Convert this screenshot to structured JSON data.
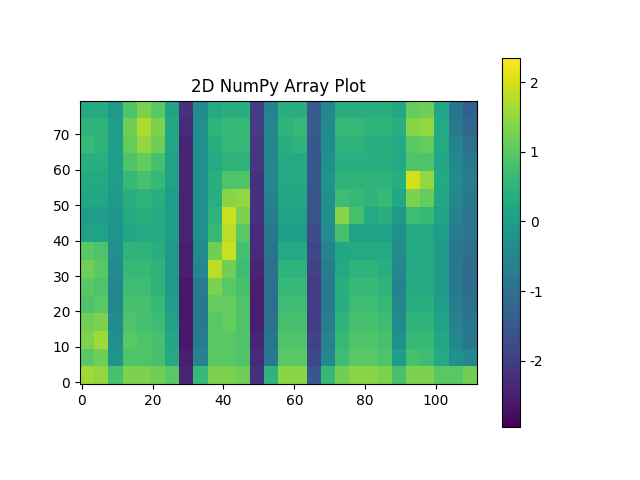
{
  "chart_data": {
    "type": "heatmap",
    "title": "2D NumPy Array Plot",
    "xlim": [
      -0.5,
      111.5
    ],
    "ylim": [
      -0.5,
      79.5
    ],
    "xticks": [
      0,
      20,
      40,
      60,
      80,
      100
    ],
    "yticks": [
      0,
      10,
      20,
      30,
      40,
      50,
      60,
      70
    ],
    "clim": [
      -2.95,
      2.35
    ],
    "colorbar_ticks": [
      -2,
      -1,
      0,
      1,
      2
    ],
    "cells": [
      [
        1.6,
        1.5,
        0.8,
        1.3,
        1.3,
        1.2,
        1.0,
        -2.4,
        0.6,
        1.3,
        1.3,
        1.2,
        -2.2,
        0.5,
        1.4,
        1.4,
        -1.5,
        0.6,
        1.2,
        1.4,
        1.4,
        1.3,
        0.8,
        1.3,
        1.3,
        1.0,
        1.0,
        1.2
      ],
      [
        1.0,
        1.2,
        -0.2,
        0.9,
        0.9,
        0.8,
        0.3,
        -2.5,
        -0.6,
        1.0,
        1.0,
        0.9,
        -2.3,
        -0.8,
        1.0,
        1.0,
        -1.8,
        -0.5,
        0.7,
        1.0,
        1.0,
        0.9,
        0.0,
        0.8,
        0.7,
        0.3,
        -0.3,
        -0.5
      ],
      [
        1.3,
        1.6,
        -0.3,
        1.0,
        0.9,
        0.8,
        0.2,
        -2.6,
        -0.7,
        1.0,
        1.0,
        0.9,
        -2.4,
        -0.9,
        0.9,
        0.9,
        -1.9,
        -0.6,
        0.6,
        0.9,
        0.9,
        0.8,
        -0.3,
        0.6,
        0.6,
        0.2,
        -0.5,
        -0.8
      ],
      [
        1.2,
        1.3,
        -0.4,
        0.9,
        0.8,
        0.7,
        0.1,
        -2.6,
        -0.8,
        1.0,
        1.1,
        0.9,
        -2.5,
        -1.0,
        0.8,
        0.8,
        -2.0,
        -0.7,
        0.5,
        0.8,
        0.8,
        0.7,
        -0.4,
        0.5,
        0.5,
        0.1,
        -0.6,
        -0.9
      ],
      [
        0.9,
        1.0,
        -0.5,
        0.8,
        0.8,
        0.6,
        0.0,
        -2.6,
        -0.8,
        1.1,
        1.1,
        0.9,
        -2.5,
        -1.0,
        0.7,
        0.7,
        -2.0,
        -0.8,
        0.4,
        0.7,
        0.7,
        0.6,
        -0.5,
        0.4,
        0.4,
        0.0,
        -0.7,
        -1.0
      ],
      [
        1.0,
        0.9,
        -0.5,
        0.7,
        0.7,
        0.5,
        -0.1,
        -2.6,
        -0.7,
        1.3,
        1.0,
        0.8,
        -2.5,
        -1.0,
        0.6,
        0.6,
        -2.0,
        -0.8,
        0.4,
        0.6,
        0.6,
        0.5,
        -0.6,
        0.3,
        0.3,
        -0.1,
        -0.8,
        -1.1
      ],
      [
        1.2,
        1.0,
        -0.4,
        0.6,
        0.6,
        0.5,
        -0.1,
        -2.5,
        -0.5,
        1.8,
        1.2,
        0.7,
        -2.4,
        -1.0,
        0.5,
        0.5,
        -1.9,
        -0.7,
        0.3,
        0.5,
        0.5,
        0.4,
        -0.5,
        0.3,
        0.3,
        -0.1,
        -0.8,
        -1.1
      ],
      [
        1.0,
        0.9,
        -0.3,
        0.5,
        0.5,
        0.4,
        -0.1,
        -2.5,
        -0.4,
        1.2,
        1.9,
        0.8,
        -2.3,
        -0.9,
        0.3,
        0.3,
        -1.8,
        -0.6,
        0.2,
        0.3,
        0.3,
        0.3,
        -0.4,
        0.3,
        0.3,
        -0.1,
        -0.8,
        -1.0
      ],
      [
        0.1,
        0.1,
        -0.2,
        0.2,
        0.3,
        0.3,
        0.0,
        -2.4,
        -0.3,
        0.6,
        1.8,
        1.0,
        -2.3,
        -0.8,
        0.0,
        0.0,
        -1.7,
        -0.4,
        0.8,
        0.1,
        0.1,
        0.1,
        -0.3,
        0.3,
        0.3,
        0.0,
        -0.7,
        -0.9
      ],
      [
        0.0,
        0.0,
        -0.2,
        0.3,
        0.4,
        0.3,
        0.0,
        -2.4,
        -0.3,
        0.5,
        1.9,
        1.3,
        -2.2,
        -0.7,
        0.1,
        0.1,
        -1.6,
        -0.3,
        1.4,
        0.8,
        0.3,
        0.4,
        -0.1,
        0.7,
        0.6,
        0.1,
        -0.6,
        -0.9
      ],
      [
        0.2,
        0.2,
        -0.1,
        0.4,
        0.5,
        0.4,
        0.0,
        -2.4,
        -0.3,
        0.4,
        1.4,
        1.5,
        -2.2,
        -0.6,
        0.2,
        0.2,
        -1.6,
        -0.3,
        0.7,
        0.6,
        0.5,
        0.6,
        0.2,
        1.3,
        1.1,
        0.2,
        -0.5,
        -0.8
      ],
      [
        0.3,
        0.3,
        0.0,
        0.6,
        0.8,
        0.6,
        0.1,
        -2.4,
        -0.3,
        0.4,
        0.9,
        0.9,
        -2.2,
        -0.5,
        0.3,
        0.3,
        -1.5,
        -0.2,
        0.5,
        0.5,
        0.5,
        0.5,
        0.4,
        2.0,
        1.5,
        0.3,
        -0.4,
        -0.7
      ],
      [
        0.4,
        0.4,
        0.0,
        0.9,
        1.1,
        0.8,
        0.1,
        -2.4,
        -0.3,
        0.3,
        0.5,
        0.5,
        -2.1,
        -0.5,
        0.3,
        0.3,
        -1.5,
        -0.3,
        0.4,
        0.4,
        0.4,
        0.4,
        0.3,
        0.9,
        0.9,
        0.2,
        -0.5,
        -0.8
      ],
      [
        0.6,
        0.5,
        0.0,
        1.1,
        1.5,
        1.2,
        0.2,
        -2.4,
        -0.3,
        0.4,
        0.6,
        0.6,
        -2.1,
        -0.5,
        0.4,
        0.5,
        -1.5,
        -0.4,
        0.5,
        0.5,
        0.4,
        0.4,
        0.3,
        1.0,
        1.1,
        0.3,
        -0.6,
        -1.0
      ],
      [
        0.5,
        0.5,
        0.0,
        1.2,
        1.7,
        1.3,
        0.2,
        -2.3,
        -0.3,
        0.5,
        0.6,
        0.6,
        -2.0,
        -0.5,
        0.5,
        0.6,
        -1.4,
        -0.4,
        0.6,
        0.6,
        0.5,
        0.5,
        0.4,
        1.4,
        1.5,
        0.3,
        -0.8,
        -1.2
      ],
      [
        0.3,
        0.3,
        -0.1,
        0.9,
        1.3,
        1.0,
        0.1,
        -2.2,
        -0.4,
        0.3,
        0.4,
        0.4,
        -2.0,
        -0.6,
        0.4,
        0.4,
        -1.4,
        -0.5,
        0.4,
        0.4,
        0.4,
        0.4,
        0.2,
        1.1,
        1.2,
        0.2,
        -0.9,
        -1.3
      ]
    ]
  }
}
